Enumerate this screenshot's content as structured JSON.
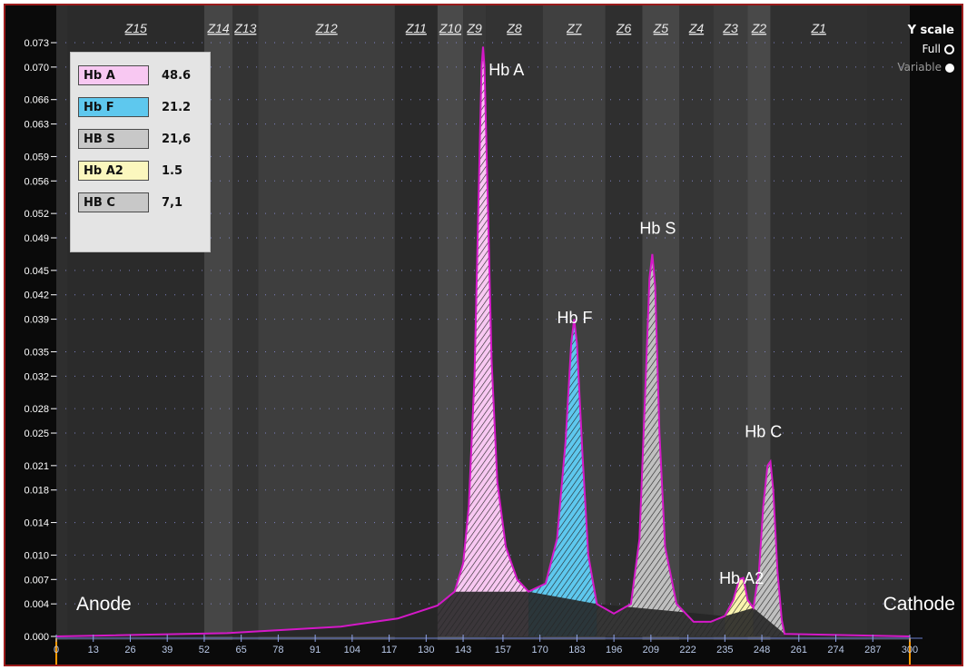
{
  "chart_data": {
    "type": "area",
    "xlabel": "",
    "ylabel": "",
    "xlim": [
      0,
      300
    ],
    "ylim": [
      0,
      0.073
    ],
    "x_ticks": [
      "0",
      "13",
      "26",
      "39",
      "52",
      "65",
      "78",
      "91",
      "104",
      "117",
      "130",
      "143",
      "157",
      "170",
      "183",
      "196",
      "209",
      "222",
      "235",
      "248",
      "261",
      "274",
      "287",
      "300"
    ],
    "y_ticks": [
      "0.000",
      "0.004",
      "0.007",
      "0.010",
      "0.014",
      "0.018",
      "0.021",
      "0.025",
      "0.028",
      "0.032",
      "0.035",
      "0.039",
      "0.042",
      "0.045",
      "0.049",
      "0.052",
      "0.056",
      "0.059",
      "0.063",
      "0.066",
      "0.070",
      "0.073"
    ],
    "zones": [
      {
        "label": "Z15",
        "x0": 4,
        "x1": 52
      },
      {
        "label": "Z14",
        "x0": 52,
        "x1": 62
      },
      {
        "label": "Z13",
        "x0": 62,
        "x1": 71
      },
      {
        "label": "Z12",
        "x0": 71,
        "x1": 119
      },
      {
        "label": "Z11",
        "x0": 119,
        "x1": 134
      },
      {
        "label": "Z10",
        "x0": 134,
        "x1": 143
      },
      {
        "label": "Z9",
        "x0": 143,
        "x1": 151
      },
      {
        "label": "Z8",
        "x0": 151,
        "x1": 171
      },
      {
        "label": "Z7",
        "x0": 171,
        "x1": 193
      },
      {
        "label": "Z6",
        "x0": 193,
        "x1": 206
      },
      {
        "label": "Z5",
        "x0": 206,
        "x1": 219
      },
      {
        "label": "Z4",
        "x0": 219,
        "x1": 231
      },
      {
        "label": "Z3",
        "x0": 231,
        "x1": 243
      },
      {
        "label": "Z2",
        "x0": 243,
        "x1": 251
      },
      {
        "label": "Z1",
        "x0": 251,
        "x1": 285
      }
    ],
    "series": [
      {
        "name": "Hb A",
        "percent": "48.6",
        "color": "#f8c8f2",
        "from": 134,
        "to": 166,
        "points": [
          [
            134,
            0.0038
          ],
          [
            140,
            0.0055
          ],
          [
            143,
            0.009
          ],
          [
            145,
            0.016
          ],
          [
            147,
            0.032
          ],
          [
            148.5,
            0.055
          ],
          [
            149.5,
            0.07
          ],
          [
            150,
            0.0725
          ],
          [
            150.5,
            0.07
          ],
          [
            151.5,
            0.056
          ],
          [
            153,
            0.034
          ],
          [
            155,
            0.019
          ],
          [
            158,
            0.011
          ],
          [
            162,
            0.007
          ],
          [
            166,
            0.0055
          ]
        ]
      },
      {
        "name": "Hb F",
        "percent": "21.2",
        "color": "#5ec8ee",
        "from": 166,
        "to": 190,
        "points": [
          [
            166,
            0.0055
          ],
          [
            172,
            0.0065
          ],
          [
            176,
            0.012
          ],
          [
            179,
            0.024
          ],
          [
            181,
            0.036
          ],
          [
            182,
            0.039
          ],
          [
            183,
            0.036
          ],
          [
            185,
            0.022
          ],
          [
            187,
            0.01
          ],
          [
            190,
            0.004
          ]
        ]
      },
      {
        "name": "HB S",
        "percent": "21,6",
        "color": "#c0c0c0",
        "from": 190,
        "to": 235,
        "points": [
          [
            190,
            0.004
          ],
          [
            196,
            0.0028
          ],
          [
            202,
            0.004
          ],
          [
            205,
            0.012
          ],
          [
            207,
            0.03
          ],
          [
            208.5,
            0.044
          ],
          [
            209.5,
            0.047
          ],
          [
            210.5,
            0.043
          ],
          [
            212,
            0.025
          ],
          [
            214,
            0.011
          ],
          [
            218,
            0.004
          ],
          [
            224,
            0.0018
          ],
          [
            230,
            0.0018
          ],
          [
            235,
            0.0025
          ]
        ]
      },
      {
        "name": "Hb A2",
        "percent": "1.5",
        "color": "#faf4ae",
        "from": 235,
        "to": 245,
        "points": [
          [
            235,
            0.0025
          ],
          [
            238,
            0.0045
          ],
          [
            240,
            0.007
          ],
          [
            241.5,
            0.0072
          ],
          [
            243,
            0.0045
          ],
          [
            245,
            0.0035
          ]
        ]
      },
      {
        "name": "HB C",
        "percent": "7,1",
        "color": "#c0c0c0",
        "from": 245,
        "to": 256,
        "points": [
          [
            245,
            0.0035
          ],
          [
            247,
            0.008
          ],
          [
            248.5,
            0.016
          ],
          [
            250,
            0.021
          ],
          [
            251,
            0.0215
          ],
          [
            252,
            0.018
          ],
          [
            253.5,
            0.008
          ],
          [
            255,
            0.002
          ],
          [
            256,
            0.0003
          ]
        ]
      }
    ],
    "baseline": [
      [
        0,
        0
      ],
      [
        60,
        0.0004
      ],
      [
        100,
        0.0012
      ],
      [
        120,
        0.0022
      ],
      [
        134,
        0.0038
      ],
      [
        140,
        0.0055
      ],
      [
        166,
        0.0055
      ],
      [
        190,
        0.004
      ],
      [
        235,
        0.0025
      ],
      [
        245,
        0.0035
      ],
      [
        256,
        0.0003
      ],
      [
        300,
        0
      ]
    ],
    "peak_labels": [
      {
        "text": "Hb A",
        "x": 152,
        "y": 0.069
      },
      {
        "text": "Hb F",
        "x": 176,
        "y": 0.0385
      },
      {
        "text": "Hb S",
        "x": 205,
        "y": 0.0495
      },
      {
        "text": "Hb A2",
        "x": 233,
        "y": 0.0065
      },
      {
        "text": "Hb C",
        "x": 242,
        "y": 0.0245
      }
    ],
    "grid": true,
    "legend": "top-left"
  },
  "legend_items": [
    {
      "label": "Hb A",
      "value": "48.6",
      "color": "#f8c8f2"
    },
    {
      "label": "Hb F",
      "value": "21.2",
      "color": "#5ec8ee"
    },
    {
      "label": "HB S",
      "value": "21,6",
      "color": "#c8c8c8"
    },
    {
      "label": "Hb A2",
      "value": "1.5",
      "color": "#fbf7be"
    },
    {
      "label": "HB C",
      "value": "7,1",
      "color": "#c8c8c8"
    }
  ],
  "y_scale": {
    "title": "Y scale",
    "full": "Full",
    "variable": "Variable"
  },
  "anode_label": "Anode",
  "cathode_label": "Cathode",
  "colors": {
    "trace": "#d418c8",
    "frame": "#9b1b1b",
    "axis": "#ff9900"
  }
}
